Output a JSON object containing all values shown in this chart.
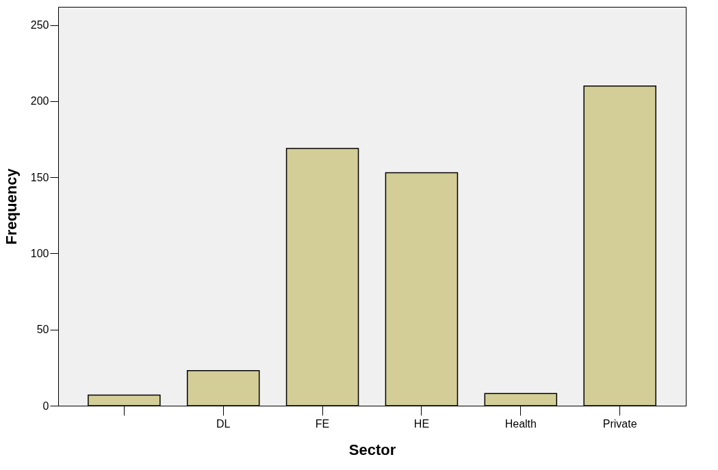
{
  "chart_data": {
    "type": "bar",
    "xlabel": "Sector",
    "ylabel": "Frequency",
    "categories": [
      null,
      "DL",
      "FE",
      "HE",
      "Health",
      "Private"
    ],
    "values": [
      7,
      23,
      169,
      153,
      8,
      210
    ],
    "color": "#d3ce97",
    "ylim": [
      0,
      262
    ],
    "yticks": [
      0,
      50,
      100,
      150,
      200,
      250
    ],
    "grid": false
  }
}
